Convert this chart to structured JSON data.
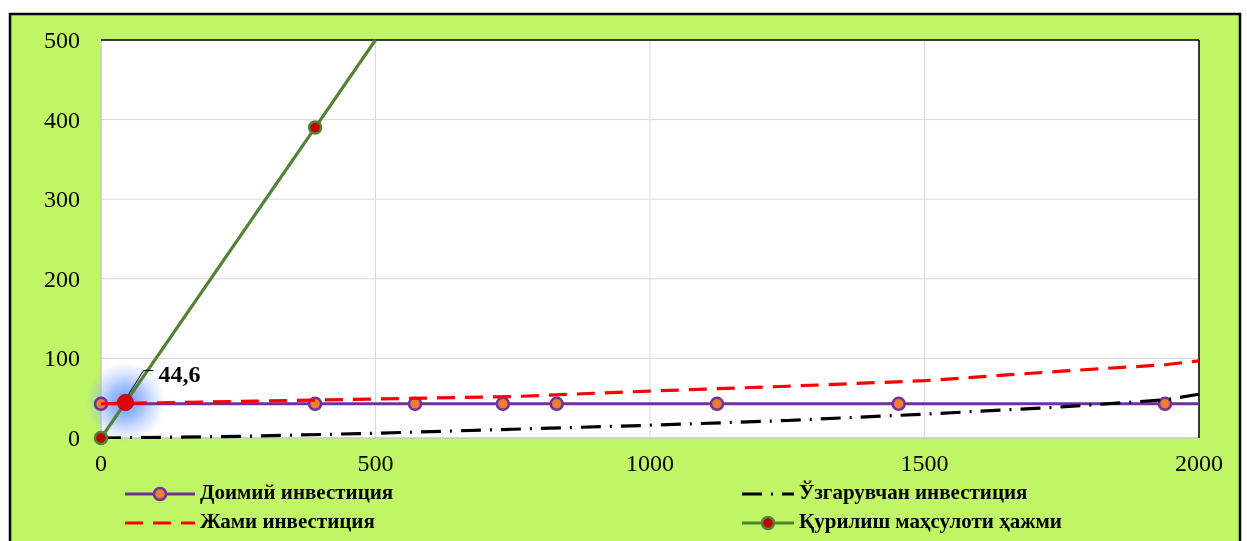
{
  "chart_data": {
    "type": "line",
    "xlim": [
      0,
      2000
    ],
    "xticks": [
      0,
      500,
      1000,
      1500,
      2000
    ],
    "ylim": [
      0,
      500
    ],
    "yticks": [
      0,
      100,
      200,
      300,
      400,
      500
    ],
    "grid": true,
    "legend": "bottom",
    "series": [
      {
        "name": "Доимий инвестиция",
        "color": "#7030a0",
        "marker": "circle",
        "x": [
          0,
          390,
          572,
          732,
          830,
          1122,
          1453,
          1938,
          2000
        ],
        "values": [
          43,
          43,
          43,
          43,
          43,
          43,
          43,
          43,
          43
        ],
        "colors": [
          "#ed7d31",
          "#ed7d31",
          "#ed7d31",
          "#ed7d31",
          "#ed7d31",
          "#ed7d31",
          "#ed7d31",
          "#ed7d31",
          null
        ]
      },
      {
        "name": "Ўзгарувчан инвестиция",
        "color": "#000000",
        "line_style": "dashdot",
        "x": [
          0,
          250,
          500,
          750,
          1000,
          1250,
          1500,
          1750,
          1938,
          2000
        ],
        "values": [
          0,
          2,
          6,
          11,
          16,
          22,
          30,
          39,
          48,
          55
        ]
      },
      {
        "name": "Жами инвестиция",
        "color": "#ff0000",
        "line_style": "dashed",
        "x": [
          0,
          250,
          500,
          750,
          1000,
          1250,
          1500,
          1750,
          1938,
          2000
        ],
        "values": [
          43,
          46,
          49,
          52,
          59,
          65,
          72,
          84,
          92,
          97
        ]
      },
      {
        "name": "Қурилиш маҳсулоти ҳажми",
        "color": "#548235",
        "marker": "circle",
        "x": [
          0,
          390,
          500
        ],
        "values": [
          0,
          390,
          500
        ],
        "colors": [
          "#c00000",
          "#c00000",
          null
        ]
      },
      {
        "type": "scatter",
        "color": "#e00000",
        "marker": "circle",
        "x": [
          44.6
        ],
        "values": [
          44.6
        ],
        "value_labels": [
          "44,6"
        ]
      }
    ]
  }
}
